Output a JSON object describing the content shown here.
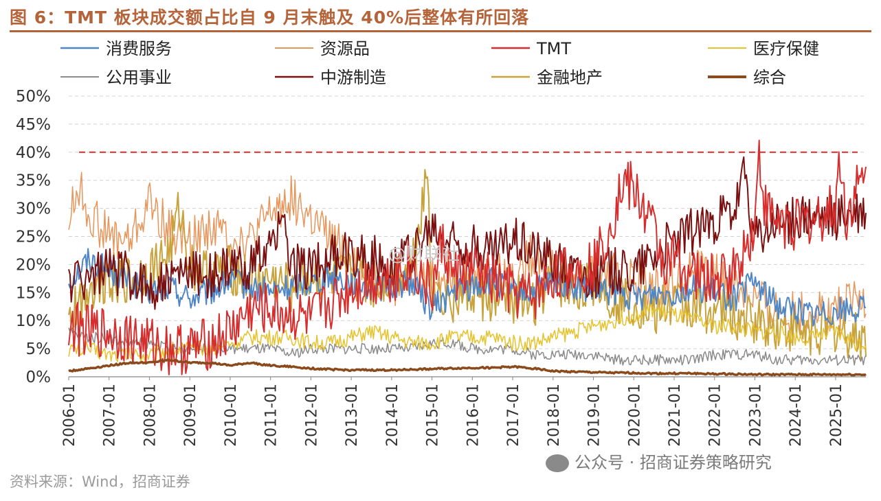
{
  "title": "图 6：TMT 板块成交额占比自 9 月末触及 40%后整体有所回落",
  "source": "资料来源：Wind，招商证券",
  "watermark_bottom": "公众号 · 招商证券策略研究",
  "watermark_center": "@财联社",
  "chart_data": {
    "type": "line",
    "title": "TMT 板块成交额占比自 9 月末触及 40%后整体有所回落",
    "xlabel": "",
    "ylabel": "",
    "ylim": [
      0,
      50
    ],
    "yticks": [
      "0%",
      "5%",
      "10%",
      "15%",
      "20%",
      "25%",
      "30%",
      "35%",
      "40%",
      "45%",
      "50%"
    ],
    "x_start": 2006.0,
    "x_end": 2025.75,
    "xticks": [
      "2006-01",
      "2007-01",
      "2008-01",
      "2009-01",
      "2010-01",
      "2011-01",
      "2012-01",
      "2013-01",
      "2014-01",
      "2015-01",
      "2016-01",
      "2017-01",
      "2018-01",
      "2019-01",
      "2020-01",
      "2021-01",
      "2022-01",
      "2023-01",
      "2024-01",
      "2025-01"
    ],
    "reference_line": {
      "value": 40,
      "color": "#d62d2d",
      "style": "dashed"
    },
    "legend_position": "top",
    "series": [
      {
        "name": "消费服务",
        "color": "#4f86c6",
        "width": 2,
        "t": [
          2006.0,
          2006.5,
          2007.0,
          2007.5,
          2008.0,
          2008.5,
          2009.0,
          2009.5,
          2010.0,
          2010.5,
          2011.0,
          2011.5,
          2012.0,
          2012.5,
          2013.0,
          2013.5,
          2014.0,
          2014.5,
          2015.0,
          2015.5,
          2016.0,
          2016.5,
          2017.0,
          2017.5,
          2018.0,
          2018.5,
          2019.0,
          2019.5,
          2020.0,
          2020.5,
          2021.0,
          2021.5,
          2022.0,
          2022.5,
          2023.0,
          2023.5,
          2024.0,
          2024.5,
          2025.0,
          2025.5,
          2025.75
        ],
        "v": [
          17,
          21,
          19,
          17,
          15,
          16,
          14,
          15,
          17,
          16,
          15,
          16,
          17,
          18,
          17,
          16,
          16,
          17,
          12,
          15,
          16,
          17,
          15,
          15,
          17,
          16,
          15,
          15,
          14,
          15,
          15,
          16,
          15,
          14,
          17,
          13,
          12,
          11,
          12,
          12,
          12
        ]
      },
      {
        "name": "资源品",
        "color": "#e8955a",
        "width": 1.5,
        "t": [
          2006.0,
          2006.25,
          2006.5,
          2007.0,
          2007.5,
          2008.0,
          2008.5,
          2009.0,
          2009.5,
          2010.0,
          2010.5,
          2011.0,
          2011.5,
          2012.0,
          2012.5,
          2013.0,
          2013.5,
          2014.0,
          2014.5,
          2015.0,
          2015.5,
          2016.0,
          2016.5,
          2017.0,
          2017.5,
          2018.0,
          2018.5,
          2019.0,
          2019.5,
          2020.0,
          2020.5,
          2021.0,
          2021.5,
          2022.0,
          2022.5,
          2023.0,
          2023.5,
          2024.0,
          2024.5,
          2025.0,
          2025.5,
          2025.75
        ],
        "v": [
          28,
          34,
          29,
          25,
          24,
          31,
          26,
          24,
          27,
          25,
          24,
          29,
          32,
          28,
          24,
          22,
          18,
          16,
          17,
          18,
          19,
          17,
          18,
          18,
          22,
          20,
          17,
          19,
          18,
          17,
          16,
          17,
          19,
          18,
          16,
          14,
          12,
          11,
          12,
          12,
          13,
          14
        ]
      },
      {
        "name": "TMT",
        "color": "#d62d2d",
        "width": 2,
        "t": [
          2006.0,
          2006.5,
          2007.0,
          2007.5,
          2008.0,
          2008.5,
          2009.0,
          2009.5,
          2010.0,
          2010.5,
          2011.0,
          2011.5,
          2012.0,
          2012.5,
          2013.0,
          2013.5,
          2014.0,
          2014.5,
          2015.0,
          2015.25,
          2015.5,
          2016.0,
          2016.5,
          2017.0,
          2017.5,
          2018.0,
          2018.5,
          2019.0,
          2019.25,
          2019.5,
          2019.75,
          2020.0,
          2020.25,
          2020.5,
          2020.75,
          2021.0,
          2021.5,
          2022.0,
          2022.5,
          2023.0,
          2023.1,
          2023.25,
          2023.5,
          2024.0,
          2024.5,
          2025.0,
          2025.1,
          2025.25,
          2025.5,
          2025.75
        ],
        "v": [
          9,
          8,
          8,
          7,
          6,
          5,
          5,
          6,
          8,
          12,
          12,
          11,
          10,
          13,
          16,
          17,
          18,
          20,
          15,
          24,
          18,
          19,
          17,
          15,
          14,
          18,
          19,
          20,
          24,
          29,
          35,
          33,
          30,
          26,
          20,
          21,
          18,
          17,
          19,
          27,
          40,
          30,
          28,
          27,
          28,
          30,
          40,
          28,
          33,
          35
        ]
      },
      {
        "name": "医疗保健",
        "color": "#e6c22c",
        "width": 1.5,
        "t": [
          2006.0,
          2006.5,
          2007.0,
          2007.5,
          2008.0,
          2008.5,
          2009.0,
          2009.5,
          2010.0,
          2010.5,
          2011.0,
          2011.5,
          2012.0,
          2012.5,
          2013.0,
          2013.5,
          2014.0,
          2014.5,
          2015.0,
          2015.5,
          2016.0,
          2016.5,
          2017.0,
          2017.5,
          2018.0,
          2018.5,
          2019.0,
          2019.5,
          2020.0,
          2020.5,
          2021.0,
          2021.5,
          2022.0,
          2022.5,
          2023.0,
          2023.5,
          2024.0,
          2024.5,
          2025.0,
          2025.5,
          2025.75
        ],
        "v": [
          5,
          5,
          4,
          4,
          4,
          5,
          5,
          5,
          6,
          7,
          7,
          7,
          6,
          6,
          7,
          8,
          7,
          6,
          6,
          7,
          7,
          7,
          6,
          6,
          7,
          8,
          9,
          10,
          11,
          12,
          11,
          10,
          9,
          9,
          8,
          8,
          7,
          7,
          8,
          6,
          6
        ]
      },
      {
        "name": "公用事业",
        "color": "#8a8a8a",
        "width": 1.5,
        "t": [
          2006.0,
          2006.5,
          2007.0,
          2007.5,
          2008.0,
          2008.5,
          2009.0,
          2009.5,
          2010.0,
          2010.5,
          2011.0,
          2011.5,
          2012.0,
          2012.5,
          2013.0,
          2013.5,
          2014.0,
          2014.5,
          2015.0,
          2015.5,
          2016.0,
          2016.5,
          2017.0,
          2017.5,
          2018.0,
          2018.5,
          2019.0,
          2019.5,
          2020.0,
          2020.5,
          2021.0,
          2021.5,
          2022.0,
          2022.5,
          2023.0,
          2023.5,
          2024.0,
          2024.5,
          2025.0,
          2025.5,
          2025.75
        ],
        "v": [
          8,
          7,
          7,
          6,
          6,
          5,
          5,
          5,
          5,
          5,
          5,
          4,
          5,
          5,
          5,
          5,
          5,
          5,
          6,
          6,
          5,
          5,
          5,
          4,
          4,
          4,
          4,
          3,
          3,
          3,
          3,
          3,
          4,
          4,
          4,
          3,
          3,
          3,
          3,
          3,
          3
        ]
      },
      {
        "name": "中游制造",
        "color": "#7a1010",
        "width": 2,
        "t": [
          2006.0,
          2006.5,
          2007.0,
          2007.5,
          2008.0,
          2008.5,
          2009.0,
          2009.5,
          2010.0,
          2010.5,
          2011.0,
          2011.25,
          2011.5,
          2012.0,
          2012.5,
          2013.0,
          2013.5,
          2014.0,
          2014.5,
          2015.0,
          2015.5,
          2016.0,
          2016.5,
          2017.0,
          2017.5,
          2018.0,
          2018.5,
          2019.0,
          2019.5,
          2020.0,
          2020.5,
          2021.0,
          2021.5,
          2022.0,
          2022.5,
          2022.75,
          2023.0,
          2023.5,
          2024.0,
          2024.5,
          2025.0,
          2025.5,
          2025.75
        ],
        "v": [
          17,
          18,
          19,
          18,
          16,
          17,
          19,
          18,
          19,
          20,
          22,
          30,
          19,
          20,
          21,
          22,
          21,
          20,
          22,
          26,
          24,
          23,
          22,
          25,
          23,
          21,
          19,
          18,
          19,
          19,
          22,
          24,
          26,
          28,
          29,
          36,
          24,
          27,
          28,
          28,
          28,
          29,
          29
        ]
      },
      {
        "name": "金融地产",
        "color": "#c8a23a",
        "width": 2,
        "t": [
          2006.0,
          2006.5,
          2007.0,
          2007.5,
          2008.0,
          2008.5,
          2008.75,
          2009.0,
          2009.5,
          2010.0,
          2010.5,
          2011.0,
          2011.5,
          2012.0,
          2012.5,
          2013.0,
          2013.5,
          2014.0,
          2014.5,
          2014.9,
          2015.0,
          2015.5,
          2016.0,
          2016.5,
          2017.0,
          2017.5,
          2018.0,
          2018.5,
          2019.0,
          2019.5,
          2020.0,
          2020.5,
          2021.0,
          2021.5,
          2022.0,
          2022.5,
          2023.0,
          2023.5,
          2024.0,
          2024.5,
          2025.0,
          2025.5,
          2025.75
        ],
        "v": [
          10,
          16,
          18,
          17,
          19,
          22,
          30,
          20,
          18,
          19,
          17,
          17,
          16,
          18,
          17,
          18,
          16,
          18,
          20,
          37,
          15,
          14,
          15,
          13,
          14,
          13,
          17,
          15,
          17,
          14,
          13,
          12,
          13,
          12,
          12,
          11,
          10,
          9,
          8,
          8,
          8,
          7,
          7
        ]
      },
      {
        "name": "综合",
        "color": "#8b4a1c",
        "width": 3.5,
        "t": [
          2006.0,
          2006.5,
          2007.0,
          2007.5,
          2008.0,
          2008.5,
          2009.0,
          2009.5,
          2010.0,
          2010.5,
          2011.0,
          2011.5,
          2012.0,
          2012.5,
          2013.0,
          2013.5,
          2014.0,
          2014.5,
          2015.0,
          2015.5,
          2016.0,
          2016.5,
          2017.0,
          2017.5,
          2018.0,
          2018.5,
          2019.0,
          2019.5,
          2020.0,
          2020.5,
          2021.0,
          2021.5,
          2022.0,
          2022.5,
          2023.0,
          2023.5,
          2024.0,
          2024.5,
          2025.0,
          2025.5,
          2025.75
        ],
        "v": [
          1.0,
          1.5,
          2.0,
          2.5,
          2.5,
          3.0,
          2.5,
          2.5,
          2.0,
          2.5,
          2.0,
          1.8,
          1.5,
          1.3,
          1.2,
          1.2,
          1.2,
          1.3,
          1.4,
          1.5,
          1.6,
          1.6,
          1.8,
          1.5,
          1.0,
          0.9,
          0.8,
          0.7,
          0.7,
          0.6,
          0.6,
          0.6,
          0.5,
          0.5,
          0.4,
          0.4,
          0.4,
          0.4,
          0.4,
          0.4,
          0.4
        ]
      }
    ]
  }
}
